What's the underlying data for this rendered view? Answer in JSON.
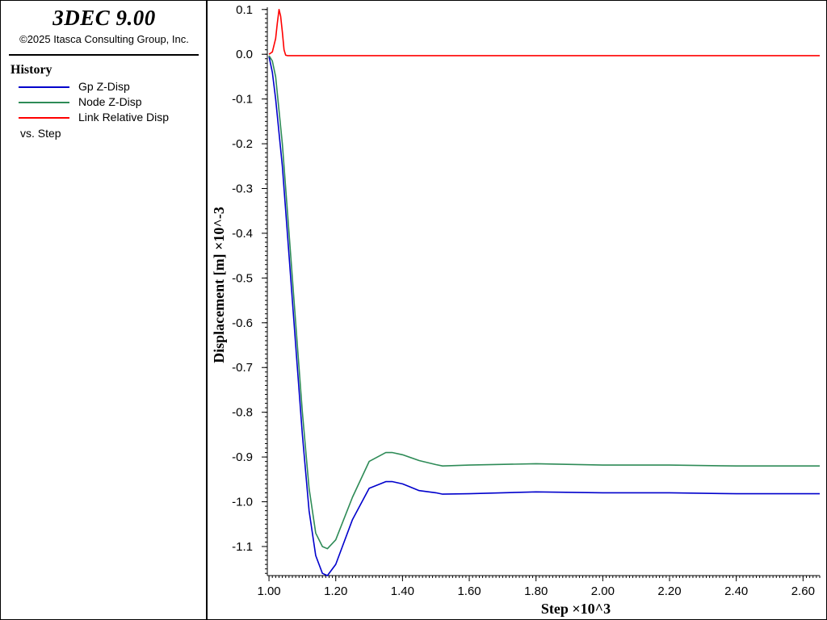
{
  "header": {
    "app_title": "3DEC 9.00",
    "copyright": "©2025 Itasca Consulting Group, Inc."
  },
  "legend": {
    "heading": "History",
    "items": [
      {
        "label": "Gp Z-Disp",
        "color": "#0000cc"
      },
      {
        "label": "Node Z-Disp",
        "color": "#2e8b57"
      },
      {
        "label": "Link Relative Disp",
        "color": "#ff0000"
      }
    ],
    "vs_label": "vs. Step"
  },
  "chart_data": {
    "type": "line",
    "xlabel": "Step ×10^3",
    "ylabel": "Displacement [m] ×10^-3",
    "xlim": [
      0.995,
      2.65
    ],
    "ylim": [
      -1.165,
      0.105
    ],
    "x_ticks": [
      1.0,
      1.2,
      1.4,
      1.6,
      1.8,
      2.0,
      2.2,
      2.4,
      2.6
    ],
    "x_tick_labels": [
      "1.00",
      "1.20",
      "1.40",
      "1.60",
      "1.80",
      "2.00",
      "2.20",
      "2.40",
      "2.60"
    ],
    "y_ticks": [
      0.1,
      0.0,
      -0.1,
      -0.2,
      -0.3,
      -0.4,
      -0.5,
      -0.6,
      -0.7,
      -0.8,
      -0.9,
      -1.0,
      -1.1
    ],
    "y_tick_labels": [
      "0.1",
      "0.0",
      "-0.1",
      "-0.2",
      "-0.3",
      "-0.4",
      "-0.5",
      "-0.6",
      "-0.7",
      "-0.8",
      "-0.9",
      "-1.0",
      "-1.1"
    ],
    "grid": false,
    "series": [
      {
        "name": "Gp Z-Disp",
        "color": "#0000cc",
        "x": [
          1.0,
          1.01,
          1.02,
          1.04,
          1.06,
          1.08,
          1.1,
          1.12,
          1.14,
          1.16,
          1.175,
          1.2,
          1.25,
          1.3,
          1.35,
          1.37,
          1.4,
          1.45,
          1.5,
          1.52,
          1.6,
          1.8,
          2.0,
          2.2,
          2.4,
          2.65
        ],
        "y": [
          -0.005,
          -0.04,
          -0.1,
          -0.25,
          -0.45,
          -0.65,
          -0.85,
          -1.02,
          -1.12,
          -1.16,
          -1.165,
          -1.14,
          -1.04,
          -0.97,
          -0.955,
          -0.955,
          -0.96,
          -0.975,
          -0.98,
          -0.983,
          -0.982,
          -0.978,
          -0.98,
          -0.98,
          -0.982,
          -0.982
        ]
      },
      {
        "name": "Node Z-Disp",
        "color": "#2e8b57",
        "x": [
          1.0,
          1.01,
          1.02,
          1.04,
          1.06,
          1.08,
          1.1,
          1.12,
          1.14,
          1.16,
          1.175,
          1.2,
          1.25,
          1.3,
          1.35,
          1.37,
          1.4,
          1.45,
          1.5,
          1.52,
          1.6,
          1.8,
          2.0,
          2.2,
          2.4,
          2.65
        ],
        "y": [
          -0.003,
          -0.015,
          -0.05,
          -0.2,
          -0.4,
          -0.6,
          -0.8,
          -0.97,
          -1.07,
          -1.1,
          -1.105,
          -1.085,
          -0.99,
          -0.91,
          -0.89,
          -0.89,
          -0.895,
          -0.908,
          -0.917,
          -0.92,
          -0.918,
          -0.915,
          -0.918,
          -0.918,
          -0.92,
          -0.92
        ]
      },
      {
        "name": "Link Relative Disp",
        "color": "#ff0000",
        "x": [
          1.0,
          1.01,
          1.02,
          1.025,
          1.03,
          1.035,
          1.04,
          1.045,
          1.05,
          1.055,
          1.07,
          1.1,
          1.5,
          2.0,
          2.65
        ],
        "y": [
          0.0,
          0.005,
          0.035,
          0.07,
          0.1,
          0.085,
          0.05,
          0.01,
          -0.002,
          -0.003,
          -0.003,
          -0.003,
          -0.003,
          -0.003,
          -0.003
        ]
      }
    ]
  }
}
